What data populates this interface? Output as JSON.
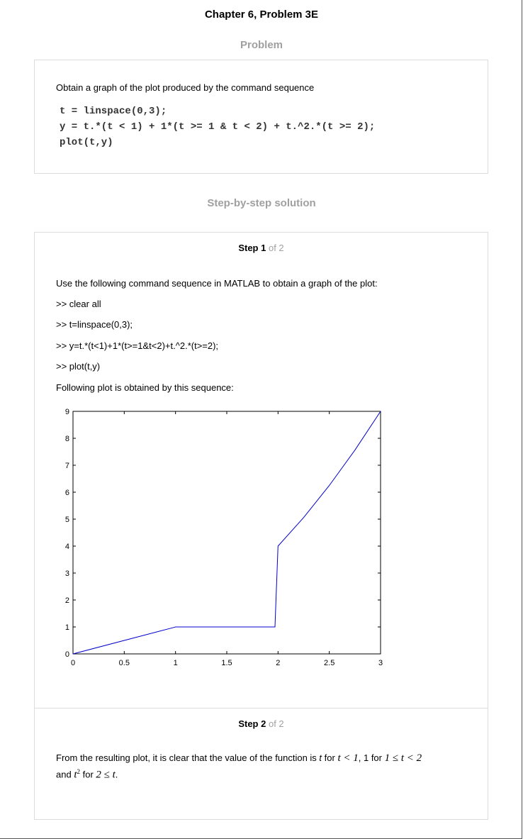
{
  "title": "Chapter 6, Problem 3E",
  "problem": {
    "heading": "Problem",
    "statement": "Obtain a graph of the plot produced by the command sequence",
    "code_lines": [
      "t = linspace(0,3);",
      "y = t.*(t < 1) + 1*(t >= 1 & t < 2) + t.^2.*(t >= 2);",
      "plot(t,y)"
    ]
  },
  "solution": {
    "heading": "Step-by-step solution",
    "step1": {
      "label": "Step 1",
      "of": "of 2",
      "intro": "Use the following command sequence in MATLAB to obtain a graph of the plot:",
      "commands": [
        ">> clear all",
        ">> t=linspace(0,3);",
        ">> y=t.*(t<1)+1*(t>=1&t<2)+t.^2.*(t>=2);",
        ">> plot(t,y)"
      ],
      "outro": "Following plot is obtained by this sequence:"
    },
    "step2": {
      "label": "Step 2",
      "of": "of 2",
      "sentence_start": "From the resulting plot, it is clear that the value of the function is ",
      "t_var": "t",
      "for_text": " for ",
      "cond1": "t < 1",
      "one_for": ", 1 for ",
      "cond2": "1 ≤ t < 2",
      "and_text": "and ",
      "t_squared_base": "t",
      "t_squared_exp": "2",
      "for_text2": " for ",
      "cond3": "2 ≤ t",
      "period": "."
    }
  },
  "chart_data": {
    "type": "line",
    "title": "",
    "xlabel": "",
    "ylabel": "",
    "xlim": [
      0,
      3
    ],
    "ylim": [
      0,
      9
    ],
    "xticks": [
      0,
      0.5,
      1,
      1.5,
      2,
      2.5,
      3
    ],
    "xtick_labels": [
      "0",
      "0.5",
      "1",
      "1.5",
      "2",
      "2.5",
      "3"
    ],
    "yticks": [
      0,
      1,
      2,
      3,
      4,
      5,
      6,
      7,
      8,
      9
    ],
    "ytick_labels": [
      "0",
      "1",
      "2",
      "3",
      "4",
      "5",
      "6",
      "7",
      "8",
      "9"
    ],
    "grid": false,
    "series": [
      {
        "color": "#0000cc",
        "points": [
          [
            0,
            0
          ],
          [
            0.98,
            0.98
          ],
          [
            1.0,
            1.0
          ],
          [
            1.97,
            1.0
          ],
          [
            2.0,
            4.0
          ],
          [
            2.25,
            5.06
          ],
          [
            2.5,
            6.25
          ],
          [
            2.75,
            7.56
          ],
          [
            3.0,
            9.0
          ]
        ]
      }
    ]
  }
}
